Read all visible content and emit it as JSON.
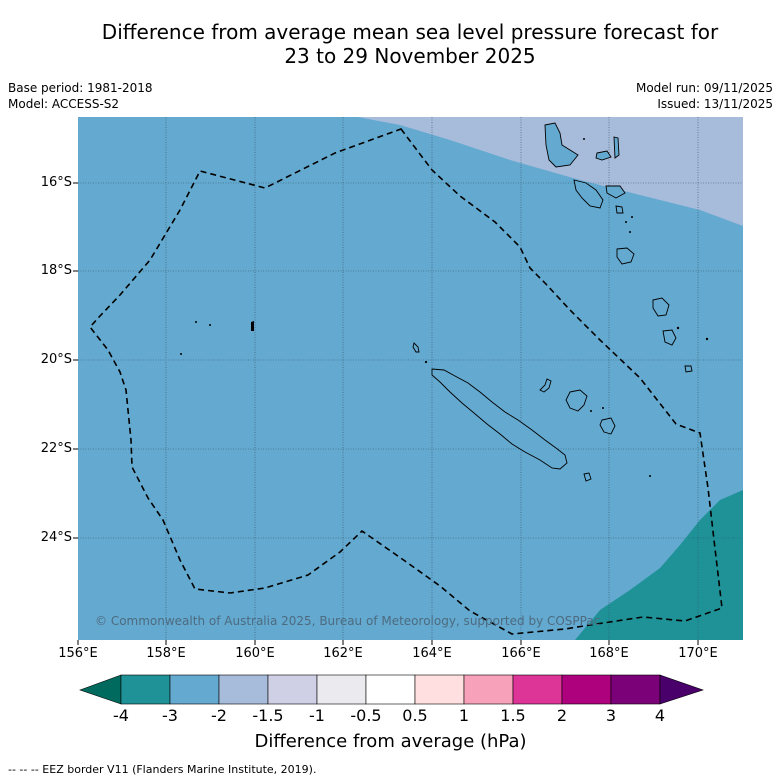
{
  "title_line1": "Difference from average mean sea level pressure forecast for",
  "title_line2": "23 to 29 November 2025",
  "base_period": "Base period: 1981-2018",
  "model": "Model: ACCESS-S2",
  "model_run": "Model run: 09/11/2025",
  "issued": "Issued: 13/11/2025",
  "copyright": "© Commonwealth of Australia 2025, Bureau of Meteorology, supported by COSPPac",
  "lat_labels": [
    "16°S",
    "18°S",
    "20°S",
    "22°S",
    "24°S"
  ],
  "lon_labels": [
    "156°E",
    "158°E",
    "160°E",
    "162°E",
    "164°E",
    "166°E",
    "168°E",
    "170°E"
  ],
  "colorbar": {
    "title": "Difference from average (hPa)",
    "ticks": [
      "-4",
      "-3",
      "-2",
      "-1.5",
      "-1",
      "-0.5",
      "0.5",
      "1",
      "1.5",
      "2",
      "3",
      "4"
    ],
    "colors": [
      "#006a5e",
      "#1f9298",
      "#64a9cf",
      "#a7bbdb",
      "#cfcfe6",
      "#ebeaef",
      "#ffffff",
      "#ffdfdf",
      "#f7a1bb",
      "#dd3497",
      "#ae017e",
      "#7a0177",
      "#49006a"
    ]
  },
  "footnote": "-- -- -- EEZ border V11 (Flanders Marine Institute, 2019)."
}
